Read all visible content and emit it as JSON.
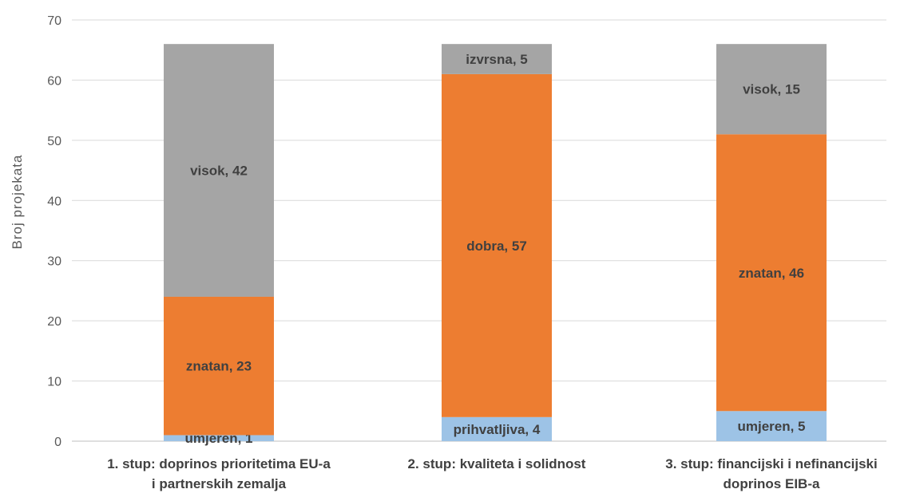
{
  "chart_data": {
    "type": "bar",
    "stacked": true,
    "ylabel": "Broj projekata",
    "xlabel": "",
    "ylim": [
      0,
      70
    ],
    "yticks": [
      "0",
      "10",
      "20",
      "30",
      "40",
      "50",
      "60",
      "70"
    ],
    "grid": true,
    "categories": [
      [
        "1. stup: doprinos prioritetima EU-a",
        "i partnerskih zemalja"
      ],
      [
        "2. stup: kvaliteta i solidnost"
      ],
      [
        "3. stup: financijski i nefinancijski",
        "doprinos EIB-a"
      ]
    ],
    "segments": [
      [
        {
          "label": "umjeren",
          "value": 1,
          "color": "#9dc3e6"
        },
        {
          "label": "znatan",
          "value": 23,
          "color": "#ed7d31"
        },
        {
          "label": "visok",
          "value": 42,
          "color": "#a5a5a5"
        }
      ],
      [
        {
          "label": "prihvatljiva",
          "value": 4,
          "color": "#9dc3e6"
        },
        {
          "label": "dobra",
          "value": 57,
          "color": "#ed7d31"
        },
        {
          "label": "izvrsna",
          "value": 5,
          "color": "#a5a5a5"
        }
      ],
      [
        {
          "label": "umjeren",
          "value": 5,
          "color": "#9dc3e6"
        },
        {
          "label": "znatan",
          "value": 46,
          "color": "#ed7d31"
        },
        {
          "label": "visok",
          "value": 15,
          "color": "#a5a5a5"
        }
      ]
    ]
  }
}
